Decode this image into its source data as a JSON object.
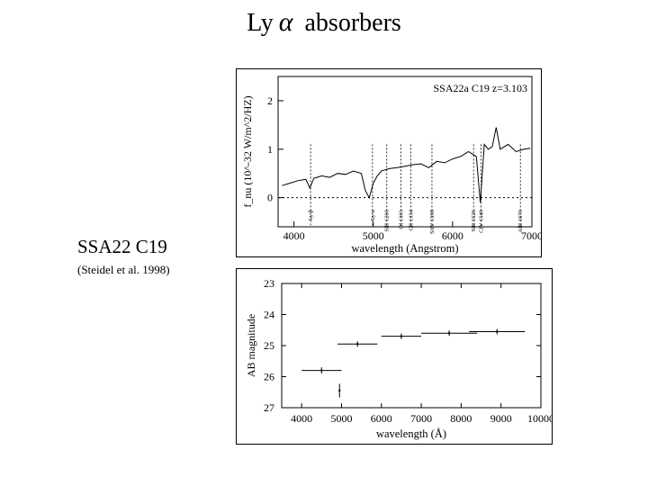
{
  "title": {
    "prefix": "Ly",
    "greek": "α",
    "suffix": "absorbers"
  },
  "object": {
    "name": "SSA22 C19",
    "citation": "(Steidel et al. 1998)"
  },
  "chart_data": [
    {
      "type": "line",
      "annotation": "SSA22a C19  z=3.103",
      "xlabel": "wavelength (Angstrom)",
      "ylabel": "f_nu (10^-32 W/m^2/HZ)",
      "xlim": [
        3800,
        7000
      ],
      "ylim": [
        -0.6,
        2.5
      ],
      "xticks": [
        4000,
        5000,
        6000,
        7000
      ],
      "yticks": [
        0,
        1,
        2
      ],
      "zero_line": "dotted",
      "lines": [
        {
          "label": "Ly β",
          "x": 4210
        },
        {
          "label": "Ly α",
          "x": 4990
        },
        {
          "label": "SiII 1260",
          "x": 5170
        },
        {
          "label": "OI 1303",
          "x": 5350
        },
        {
          "label": "CII 1334",
          "x": 5475
        },
        {
          "label": "SiIV 1398",
          "x": 5740
        },
        {
          "label": "SiII 1526",
          "x": 6265
        },
        {
          "label": "CIV 1549",
          "x": 6360
        },
        {
          "label": "AlII 1670",
          "x": 6855
        }
      ],
      "series": [
        {
          "x": [
            3850,
            3950,
            4050,
            4150,
            4200,
            4250,
            4350,
            4450,
            4550,
            4650,
            4750,
            4850,
            4900,
            4950,
            5000,
            5050,
            5100,
            5200,
            5300,
            5400,
            5500,
            5600,
            5700,
            5800,
            5900,
            6000,
            6100,
            6200,
            6300,
            6350,
            6400,
            6450,
            6500,
            6550,
            6600,
            6700,
            6800,
            6900,
            6980
          ],
          "y": [
            0.25,
            0.3,
            0.35,
            0.38,
            0.2,
            0.4,
            0.45,
            0.42,
            0.5,
            0.48,
            0.55,
            0.5,
            0.15,
            0.0,
            0.3,
            0.45,
            0.55,
            0.6,
            0.62,
            0.65,
            0.68,
            0.7,
            0.62,
            0.75,
            0.72,
            0.8,
            0.85,
            0.95,
            0.85,
            -0.1,
            1.1,
            1.0,
            1.05,
            1.45,
            1.0,
            1.1,
            0.95,
            1.0,
            1.02
          ]
        }
      ]
    },
    {
      "type": "scatter",
      "xlabel": "wavelength (Å)",
      "ylabel": "AB magnitude",
      "xlim": [
        3500,
        10000
      ],
      "ylim": [
        27,
        23
      ],
      "xticks": [
        4000,
        5000,
        6000,
        7000,
        8000,
        9000,
        10000
      ],
      "yticks": [
        23,
        24,
        25,
        26,
        27
      ],
      "series": [
        {
          "x": [
            4500,
            5400,
            6500,
            7700,
            8900,
            4950
          ],
          "y": [
            25.8,
            24.95,
            24.7,
            24.6,
            24.55,
            26.45
          ],
          "xerr": [
            500,
            500,
            500,
            700,
            700,
            0
          ],
          "yerr": [
            0.1,
            0.04,
            0.04,
            0.04,
            0.08,
            0.22
          ]
        }
      ]
    }
  ]
}
